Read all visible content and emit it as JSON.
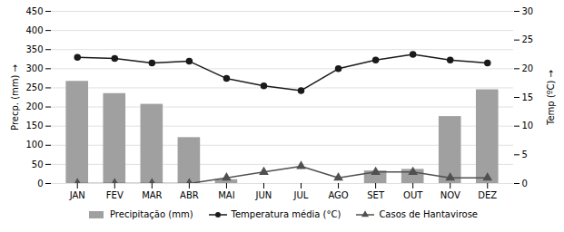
{
  "chart_data": {
    "type": "bar",
    "categories": [
      "JAN",
      "FEV",
      "MAR",
      "ABR",
      "MAI",
      "JUN",
      "JUL",
      "AGO",
      "SET",
      "OUT",
      "NOV",
      "DEZ"
    ],
    "ylabel": "Precp. (mm)",
    "y2label": "Temp (ºC)",
    "ylim": [
      0,
      450
    ],
    "yticks": [
      0,
      50,
      100,
      150,
      200,
      250,
      300,
      350,
      400,
      450
    ],
    "y2lim": [
      0,
      30
    ],
    "y2ticks": [
      0,
      5,
      10,
      15,
      20,
      25,
      30
    ],
    "grid": true,
    "legend": "bottom",
    "series": [
      {
        "name": "Precipitação (mm)",
        "type": "bar",
        "color": "#a0a0a0",
        "values": [
          267,
          235,
          207,
          120,
          10,
          0,
          0,
          0,
          33,
          37,
          175,
          245
        ]
      },
      {
        "name": "Temperatura média (°C)",
        "type": "line",
        "axis": "y2",
        "color": "#1a1a1a",
        "marker": "circle",
        "values": [
          22.0,
          21.8,
          21.0,
          21.3,
          18.3,
          17.0,
          16.2,
          20.0,
          21.5,
          22.5,
          21.5,
          21.0
        ]
      },
      {
        "name": "Casos de Hantavirose",
        "type": "line",
        "axis": "y2",
        "color": "#505050",
        "marker": "triangle",
        "values": [
          0,
          0,
          0,
          0,
          1,
          2,
          3,
          1,
          2,
          2,
          1,
          1
        ]
      }
    ]
  }
}
